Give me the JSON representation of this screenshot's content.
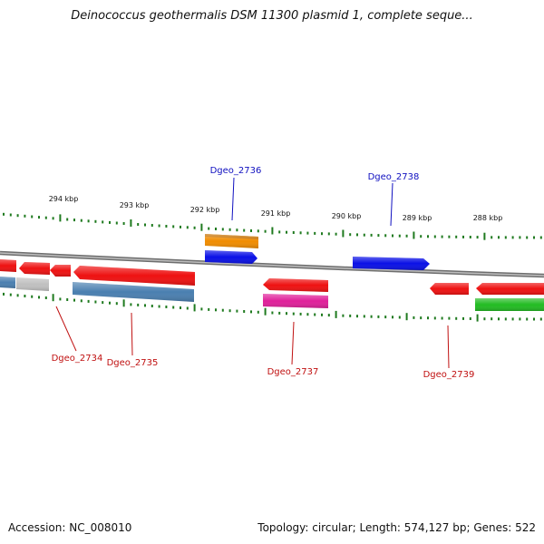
{
  "header": {
    "title": "Deinococcus geothermalis DSM 11300 plasmid 1, complete seque..."
  },
  "footer": {
    "accession": "Accession: NC_008010",
    "summary": "Topology: circular; Length: 574,127 bp; Genes: 522"
  },
  "colors": {
    "backbone": "#8c8c8c",
    "ticks": "#1f7a1f",
    "forward_label": "#1010c0",
    "reverse_label": "#c01010",
    "red": "#ee1111",
    "orange": "#f08c00",
    "blue": "#0a10e6",
    "steelblue": "#4a7fb0",
    "grey": "#c0c0c0",
    "magenta": "#e0209a",
    "green": "#22bb22"
  },
  "ruler": {
    "tick_labels": [
      "294 kbp",
      "293 kbp",
      "292 kbp",
      "291 kbp",
      "290 kbp",
      "289 kbp",
      "288 kbp"
    ]
  },
  "gene_labels": [
    {
      "text": "Dgeo_2736",
      "strand": "forward"
    },
    {
      "text": "Dgeo_2738",
      "strand": "forward"
    },
    {
      "text": "Dgeo_2734",
      "strand": "reverse"
    },
    {
      "text": "Dgeo_2735",
      "strand": "reverse"
    },
    {
      "text": "Dgeo_2737",
      "strand": "reverse"
    },
    {
      "text": "Dgeo_2739",
      "strand": "reverse"
    }
  ]
}
